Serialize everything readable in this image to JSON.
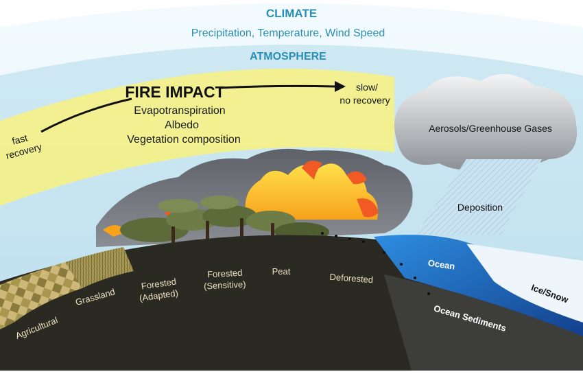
{
  "climate": {
    "title": "CLIMATE",
    "subtitle": "Precipitation, Temperature, Wind Speed"
  },
  "atmosphere": {
    "title": "ATMOSPHERE"
  },
  "fire_impact": {
    "title": "FIRE IMPACT",
    "factors": [
      "Evapotranspiration",
      "Albedo",
      "Vegetation composition"
    ],
    "left_end_line1": "fast",
    "left_end_line2": "recovery",
    "right_end_line1": "slow/",
    "right_end_line2": "no recovery"
  },
  "processes": {
    "aerosols": "Aerosols/Greenhouse Gases",
    "deposition": "Deposition"
  },
  "land_types": [
    "Agricultural",
    "Grassland",
    "Forested",
    "(Adapted)",
    "Forested",
    "(Sensitive)",
    "Peat",
    "Deforested"
  ],
  "water": {
    "ocean": "Ocean",
    "ice_snow": "Ice/Snow",
    "ocean_sediments": "Ocean Sediments"
  },
  "colors": {
    "climate_blue": "#2a8fb5",
    "band_yellow": "#f3f08a",
    "smoke_gray": "#7a7e84",
    "ground_dark": "#2b2a22",
    "ocean_blue": "#1f6fc4"
  }
}
